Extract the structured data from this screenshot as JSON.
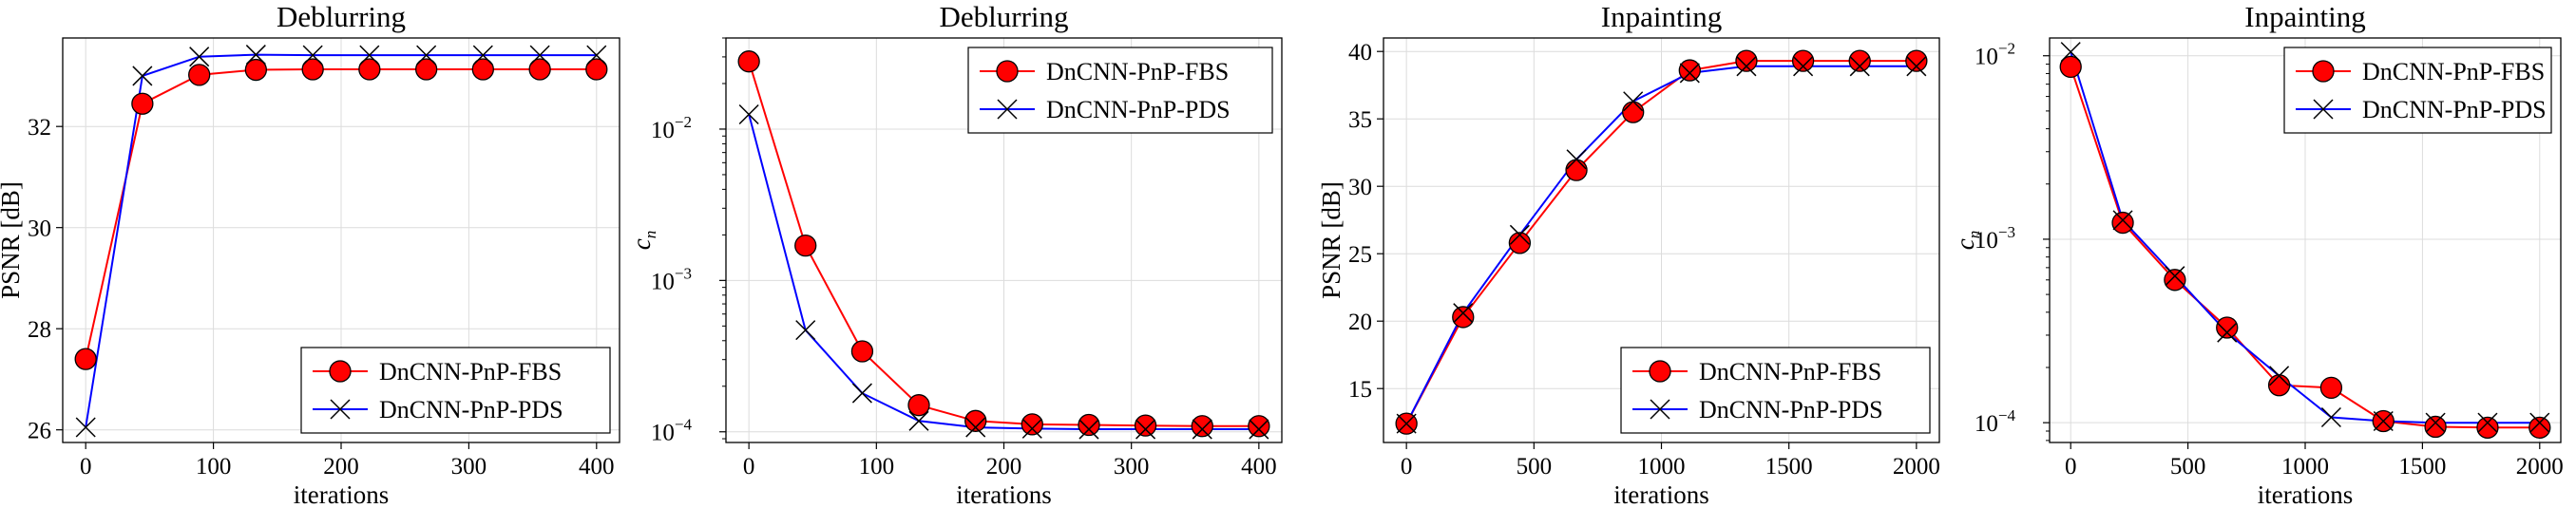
{
  "chart_data": [
    {
      "type": "line",
      "title": "Deblurring",
      "xlabel": "iterations",
      "ylabel": "PSNR [dB]",
      "xlim": [
        -18,
        418
      ],
      "ylim": [
        25.75,
        33.75
      ],
      "yscale": "linear",
      "xticks": [
        0,
        100,
        200,
        300,
        400
      ],
      "yticks": [
        26,
        28,
        30,
        32
      ],
      "grid": true,
      "legend_position": "bottom-right",
      "x": [
        0,
        44.4,
        88.9,
        133.3,
        177.8,
        222.2,
        266.7,
        311.1,
        355.6,
        400
      ],
      "series": [
        {
          "name": "DnCNN-PnP-FBS",
          "color": "#ff0000",
          "marker": "circle",
          "values": [
            27.4,
            32.45,
            33.02,
            33.12,
            33.13,
            33.13,
            33.13,
            33.13,
            33.13,
            33.13
          ]
        },
        {
          "name": "DnCNN-PnP-PDS",
          "color": "#0000ff",
          "marker": "x",
          "values": [
            26.05,
            33.0,
            33.38,
            33.42,
            33.41,
            33.41,
            33.41,
            33.41,
            33.41,
            33.41
          ]
        }
      ]
    },
    {
      "type": "line",
      "title": "Deblurring",
      "xlabel": "iterations",
      "ylabel": "c",
      "ylabel_sub": "n",
      "xlim": [
        -18,
        418
      ],
      "ylim": [
        8.5e-05,
        0.04
      ],
      "yscale": "log",
      "xticks": [
        0,
        100,
        200,
        300,
        400
      ],
      "yticks": [
        -4,
        -3,
        -2
      ],
      "grid": true,
      "legend_position": "top-right",
      "x": [
        0,
        44.4,
        88.9,
        133.3,
        177.8,
        222.2,
        266.7,
        311.1,
        355.6,
        400
      ],
      "series": [
        {
          "name": "DnCNN-PnP-FBS",
          "color": "#ff0000",
          "marker": "circle",
          "values": [
            0.028,
            0.0017,
            0.00034,
            0.00015,
            0.000118,
            0.000112,
            0.000111,
            0.00011,
            0.000109,
            0.000109
          ]
        },
        {
          "name": "DnCNN-PnP-PDS",
          "color": "#0000ff",
          "marker": "x",
          "values": [
            0.0125,
            0.00047,
            0.00018,
            0.000118,
            0.000107,
            0.000105,
            0.000104,
            0.000104,
            0.000104,
            0.000104
          ]
        }
      ]
    },
    {
      "type": "line",
      "title": "Inpainting",
      "xlabel": "iterations",
      "ylabel": "PSNR [dB]",
      "xlim": [
        -90,
        2090
      ],
      "ylim": [
        11,
        41
      ],
      "yscale": "linear",
      "xticks": [
        0,
        500,
        1000,
        1500,
        2000
      ],
      "yticks": [
        15,
        20,
        25,
        30,
        35,
        40
      ],
      "grid": true,
      "legend_position": "bottom-right",
      "x": [
        0,
        222.2,
        444.4,
        666.7,
        888.9,
        1111.1,
        1333.3,
        1555.6,
        1777.8,
        2000
      ],
      "series": [
        {
          "name": "DnCNN-PnP-FBS",
          "color": "#ff0000",
          "marker": "circle",
          "values": [
            12.4,
            20.3,
            25.8,
            31.2,
            35.5,
            38.6,
            39.3,
            39.3,
            39.3,
            39.3
          ]
        },
        {
          "name": "DnCNN-PnP-PDS",
          "color": "#0000ff",
          "marker": "x",
          "values": [
            12.4,
            20.6,
            26.4,
            32.0,
            36.3,
            38.4,
            38.9,
            38.9,
            38.9,
            38.9
          ]
        }
      ]
    },
    {
      "type": "line",
      "title": "Inpainting",
      "xlabel": "iterations",
      "ylabel": "c",
      "ylabel_sub": "n",
      "xlim": [
        -90,
        2090
      ],
      "ylim": [
        7.8e-05,
        0.0125
      ],
      "yscale": "log",
      "xticks": [
        0,
        500,
        1000,
        1500,
        2000
      ],
      "yticks": [
        -4,
        -3,
        -2
      ],
      "grid": true,
      "legend_position": "top-right",
      "x": [
        0,
        222.2,
        444.4,
        666.7,
        888.9,
        1111.1,
        1333.3,
        1555.6,
        1777.8,
        2000
      ],
      "series": [
        {
          "name": "DnCNN-PnP-FBS",
          "color": "#ff0000",
          "marker": "circle",
          "values": [
            0.0087,
            0.00123,
            0.0006,
            0.00033,
            0.00016,
            0.000155,
            0.000102,
            9.5e-05,
            9.4e-05,
            9.4e-05
          ]
        },
        {
          "name": "DnCNN-PnP-PDS",
          "color": "#0000ff",
          "marker": "x",
          "values": [
            0.0105,
            0.00127,
            0.00063,
            0.00031,
            0.00018,
            0.000107,
            0.000102,
            0.0001,
            0.0001,
            0.0001
          ]
        }
      ]
    }
  ]
}
